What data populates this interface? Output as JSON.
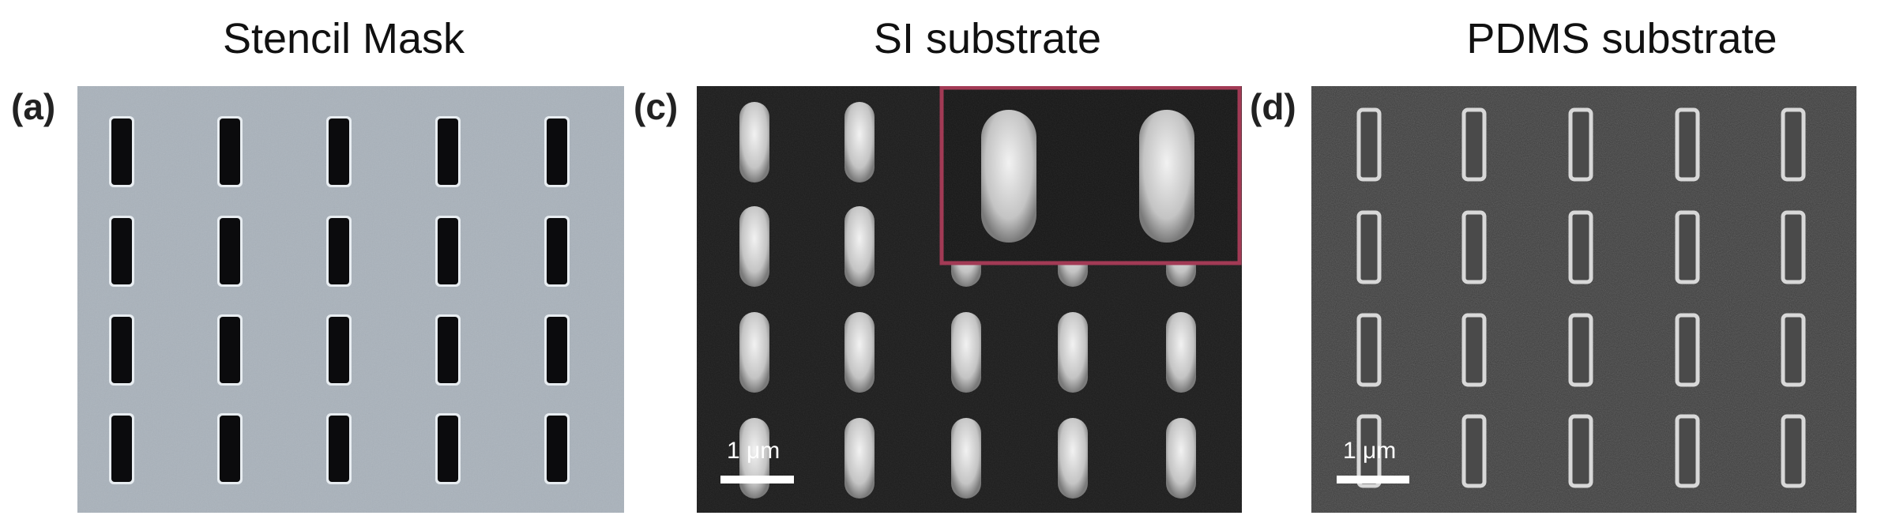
{
  "figure": {
    "titles": {
      "a": "Stencil Mask",
      "c": "SI substrate",
      "d": "PDMS substrate"
    },
    "panel_labels": {
      "a": "(a)",
      "c": "(c)",
      "d": "(d)"
    },
    "scale_bars": {
      "c": "1 μm",
      "d": "1 μm"
    },
    "grid": {
      "rows": 4,
      "columns": 5
    },
    "colors": {
      "stencil_background": "#a9b2bb",
      "stencil_holes": "#0b0b0d",
      "si_background": "#1b1b1b",
      "si_features": "#cfcfcf",
      "pdms_background": "#3c3c3c",
      "pdms_feature_rims": "#d8d8d8",
      "inset_border": "#a23a55"
    }
  }
}
